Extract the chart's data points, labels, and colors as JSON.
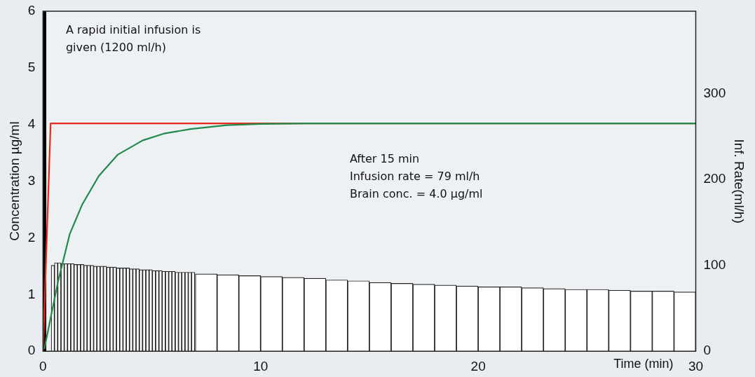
{
  "chart_data": {
    "type": "line",
    "xlabel": "Time (min)",
    "ylabel": "Concentration µg/ml",
    "y2label": "Inf. Rate(ml/h)",
    "xlim": [
      0,
      30
    ],
    "xticks": [
      0,
      10,
      20,
      30
    ],
    "ylim": [
      0,
      6
    ],
    "yticks": [
      0,
      1,
      2,
      3,
      4,
      5,
      6
    ],
    "y2lim": [
      0,
      396
    ],
    "y2ticks": [
      0,
      100,
      200,
      300
    ],
    "grid": false,
    "legend": false,
    "marker": "none",
    "series": [
      {
        "type": "bar",
        "axis": "y2",
        "color": "#ffffff",
        "x": [
          0.45,
          0.6,
          0.75,
          0.9,
          1.05,
          1.2,
          1.35,
          1.5,
          1.65,
          1.8,
          1.95,
          2.1,
          2.25,
          2.4,
          2.55,
          2.7,
          2.85,
          3.0,
          3.15,
          3.3,
          3.45,
          3.6,
          3.75,
          3.9,
          4.05,
          4.2,
          4.35,
          4.5,
          4.65,
          4.8,
          4.95,
          5.1,
          5.25,
          5.4,
          5.55,
          5.7,
          5.85,
          6.0,
          6.15,
          6.3,
          6.45,
          6.6,
          6.75,
          6.9
        ],
        "values": [
          100,
          103,
          103,
          102,
          102,
          102,
          102,
          101,
          101,
          101,
          100,
          100,
          100,
          99,
          99,
          99,
          99,
          98,
          98,
          98,
          97,
          97,
          97,
          97,
          96,
          96,
          96,
          95,
          95,
          95,
          95,
          94,
          94,
          94,
          93,
          93,
          93,
          93,
          92,
          92,
          92,
          92,
          92,
          92
        ]
      },
      {
        "type": "bar",
        "axis": "y2",
        "color": "#ffffff",
        "x": [
          7.5,
          8.5,
          9.5,
          10.5,
          11.5,
          12.5,
          13.5,
          14.5,
          15.5,
          16.5,
          17.5,
          18.5,
          19.5,
          20.5,
          21.5,
          22.5,
          23.5,
          24.5,
          25.5,
          26.5,
          27.5,
          28.5,
          29.5
        ],
        "values": [
          90,
          89,
          88,
          87,
          86,
          85,
          83,
          82,
          80,
          79,
          78,
          77,
          76,
          75,
          75,
          74,
          73,
          72,
          72,
          71,
          70,
          70,
          69
        ]
      },
      {
        "color": "#e8291c",
        "x": [
          0,
          0.35,
          30
        ],
        "values": [
          0,
          4.02,
          4.02
        ]
      },
      {
        "color": "#1f8a4c",
        "x": [
          0.06,
          0.68,
          1.23,
          1.79,
          2.56,
          3.44,
          4.58,
          5.55,
          6.79,
          8.44,
          10,
          12,
          15,
          20,
          25,
          30
        ],
        "values": [
          0.04,
          1.21,
          2.07,
          2.58,
          3.09,
          3.47,
          3.72,
          3.84,
          3.92,
          3.99,
          4.01,
          4.02,
          4.02,
          4.02,
          4.02,
          4.02
        ]
      }
    ],
    "bands": [
      {
        "axis": "x",
        "from": 0,
        "to": 0.15,
        "color": "#000000"
      }
    ],
    "annotations": [
      "A rapid initial infusion is\ngiven (1200 ml/h)",
      "After 15 min\nInfusion rate = 79 ml/h\nBrain conc. = 4.0 µg/ml"
    ]
  }
}
